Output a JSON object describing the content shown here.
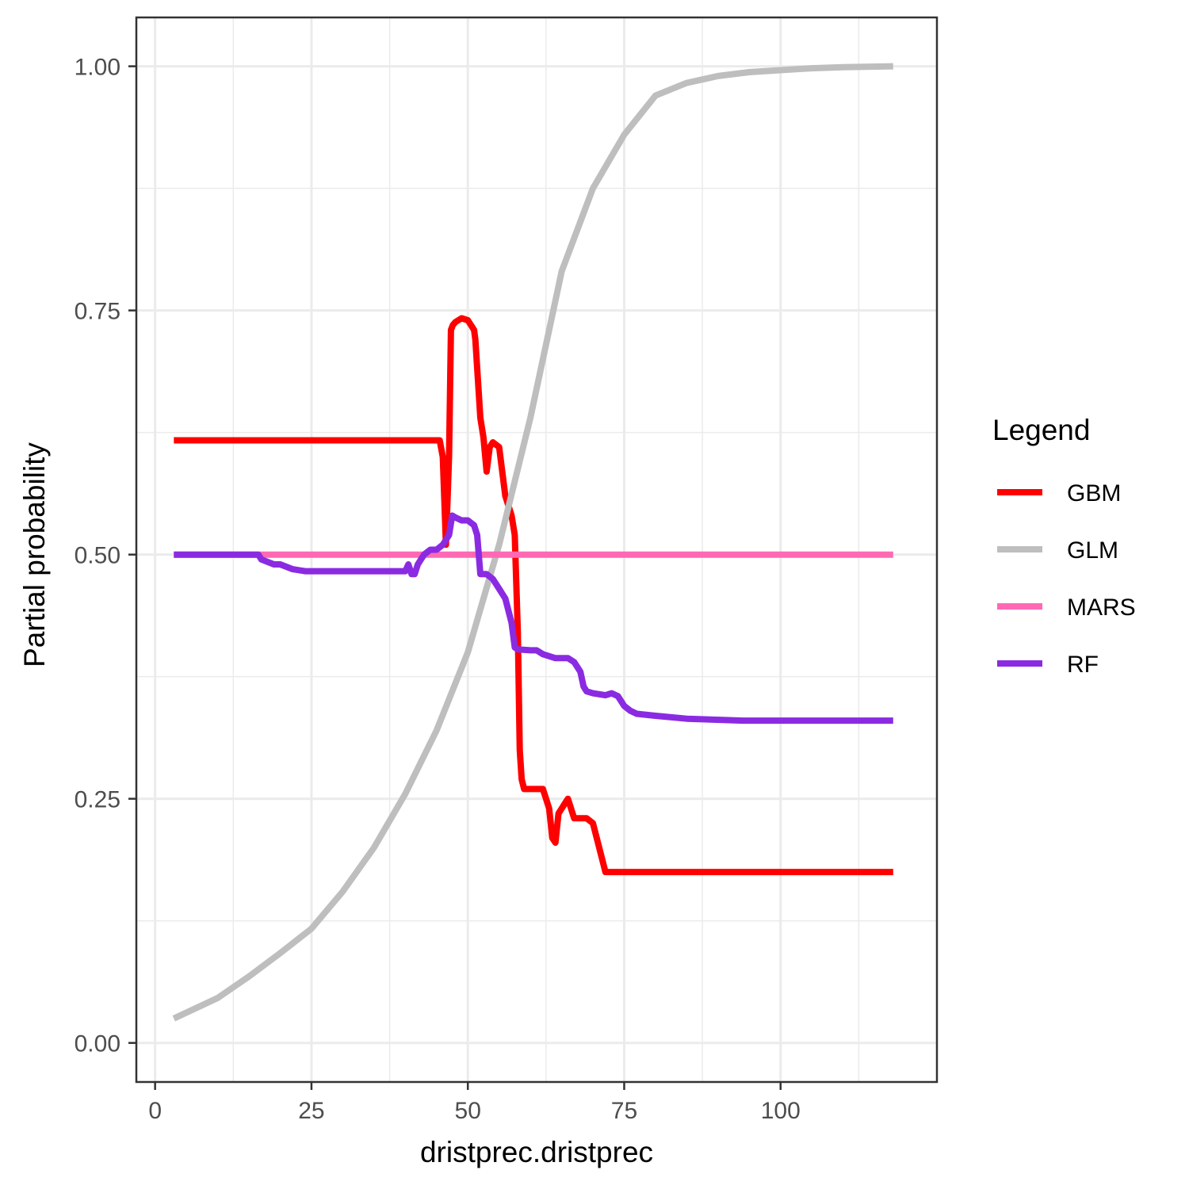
{
  "chart_data": {
    "type": "line",
    "xlabel": "dristprec.dristprec",
    "ylabel": "Partial probability",
    "xlim": [
      -3,
      125
    ],
    "ylim": [
      -0.04,
      1.05
    ],
    "x_ticks": [
      0,
      25,
      50,
      75,
      100
    ],
    "x_tick_labels": [
      "0",
      "25",
      "50",
      "75",
      "100"
    ],
    "y_ticks": [
      0,
      0.25,
      0.5,
      0.75,
      1
    ],
    "y_tick_labels": [
      "0.00",
      "0.25",
      "0.50",
      "0.75",
      "1.00"
    ],
    "grid": true,
    "legend": {
      "title": "Legend",
      "position": "right"
    },
    "series": [
      {
        "name": "GBM",
        "color": "#ff0000",
        "x": [
          3,
          45.5,
          46,
          46.5,
          47,
          47.3,
          47.6,
          48,
          49,
          50,
          51,
          51.2,
          52,
          52.5,
          53,
          53.5,
          54,
          55,
          56,
          56.5,
          57,
          57.5,
          58,
          58.3,
          58.6,
          59,
          60,
          61,
          62,
          63,
          63.5,
          64,
          64.5,
          65,
          65.5,
          66,
          67,
          68,
          69,
          70,
          71,
          72,
          80,
          100,
          118
        ],
        "y": [
          0.617,
          0.617,
          0.6,
          0.51,
          0.6,
          0.73,
          0.735,
          0.738,
          0.742,
          0.74,
          0.73,
          0.72,
          0.64,
          0.62,
          0.585,
          0.61,
          0.615,
          0.61,
          0.56,
          0.55,
          0.54,
          0.52,
          0.42,
          0.3,
          0.27,
          0.26,
          0.26,
          0.26,
          0.26,
          0.24,
          0.21,
          0.205,
          0.235,
          0.24,
          0.245,
          0.25,
          0.23,
          0.23,
          0.23,
          0.225,
          0.2,
          0.175,
          0.175,
          0.175,
          0.175
        ]
      },
      {
        "name": "GLM",
        "color": "#bebebe",
        "x": [
          3,
          10,
          15,
          20,
          25,
          30,
          35,
          40,
          45,
          50,
          55,
          60,
          62,
          65,
          70,
          75,
          80,
          85,
          90,
          95,
          100,
          105,
          110,
          118
        ],
        "y": [
          0.025,
          0.046,
          0.068,
          0.092,
          0.117,
          0.155,
          0.2,
          0.255,
          0.32,
          0.4,
          0.51,
          0.64,
          0.7,
          0.79,
          0.875,
          0.93,
          0.97,
          0.983,
          0.99,
          0.994,
          0.996,
          0.998,
          0.999,
          1.0
        ]
      },
      {
        "name": "MARS",
        "color": "#ff69b4",
        "x": [
          3,
          118
        ],
        "y": [
          0.5,
          0.5
        ]
      },
      {
        "name": "RF",
        "color": "#8a2be2",
        "x": [
          3,
          16.5,
          17,
          19,
          20,
          22,
          24,
          30,
          35,
          40,
          40.5,
          41,
          41.5,
          42,
          43,
          44,
          45,
          46,
          47,
          47.5,
          48,
          49,
          50,
          51,
          51.5,
          52,
          53,
          54,
          55,
          56,
          57,
          57.5,
          58,
          60,
          61,
          62,
          63,
          64,
          66,
          67,
          68,
          68.5,
          69,
          70,
          72,
          73,
          74,
          75,
          76,
          77,
          80,
          85,
          94,
          100,
          118
        ],
        "y": [
          0.5,
          0.5,
          0.495,
          0.49,
          0.49,
          0.485,
          0.483,
          0.483,
          0.483,
          0.483,
          0.49,
          0.48,
          0.48,
          0.49,
          0.5,
          0.505,
          0.505,
          0.51,
          0.52,
          0.54,
          0.538,
          0.535,
          0.535,
          0.53,
          0.52,
          0.48,
          0.48,
          0.475,
          0.465,
          0.455,
          0.43,
          0.405,
          0.403,
          0.402,
          0.402,
          0.398,
          0.396,
          0.394,
          0.394,
          0.39,
          0.38,
          0.365,
          0.36,
          0.358,
          0.356,
          0.358,
          0.355,
          0.345,
          0.34,
          0.337,
          0.335,
          0.332,
          0.33,
          0.33,
          0.33
        ]
      }
    ]
  }
}
